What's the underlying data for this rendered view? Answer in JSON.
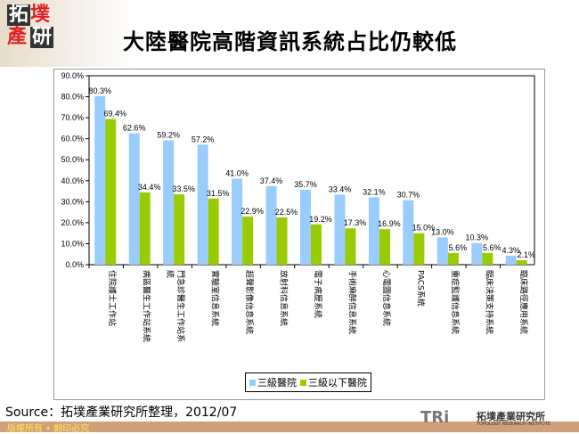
{
  "header": {
    "logo_text": "拓墣產研",
    "title": "大陸醫院高階資訊系統占比仍較低"
  },
  "chart_data": {
    "type": "bar",
    "title": "",
    "categories": [
      "住院護士工作站",
      "病區醫生工作站系統",
      "門急診醫生工作站系統",
      "實驗室信息系統",
      "超聲影像信息系統",
      "放射科信息系統",
      "電子病歷系統",
      "手術麻醉信息系統",
      "心電圖信息系統",
      "PACS系統",
      "重症監護信息系統",
      "臨床決策支持系統",
      "臨床路徑應用系統"
    ],
    "series": [
      {
        "name": "三級醫院",
        "color": "#99ccff",
        "values": [
          80.3,
          62.6,
          59.2,
          57.2,
          41.0,
          37.4,
          35.7,
          33.4,
          32.1,
          30.7,
          13.0,
          10.3,
          4.3
        ],
        "labels": [
          "80.3%",
          "62.6%",
          "59.2%",
          "57.2%",
          "41.0%",
          "37.4%",
          "35.7%",
          "33.4%",
          "32.1%",
          "30.7%",
          "13.0%",
          "10.3%",
          "4.3%"
        ]
      },
      {
        "name": "三級以下醫院",
        "color": "#99cc00",
        "values": [
          69.4,
          34.4,
          33.5,
          31.5,
          22.9,
          22.5,
          19.2,
          17.3,
          16.9,
          15.0,
          5.6,
          5.6,
          2.1
        ],
        "labels": [
          "69.4%",
          "34.4%",
          "33.5%",
          "31.5%",
          "22.9%",
          "22.5%",
          "19.2%",
          "17.3%",
          "16.9%",
          "15.0%",
          "5.6%",
          "5.6%",
          "2.1%"
        ]
      }
    ],
    "ylim": [
      0,
      90
    ],
    "yticks": [
      "0.0%",
      "10.0%",
      "20.0%",
      "30.0%",
      "40.0%",
      "50.0%",
      "60.0%",
      "70.0%",
      "80.0%",
      "90.0%"
    ],
    "grid": false,
    "legend": "bottom"
  },
  "source": "Source：拓墣產業研究所整理，2012/07",
  "footer": {
    "copyright": "版權所有 • 翻印必究",
    "brand": "TRi",
    "brand_cn": "拓墣產業研究所",
    "brand_en": "TOPOLOGY RESEARCH INSTITUTE"
  }
}
